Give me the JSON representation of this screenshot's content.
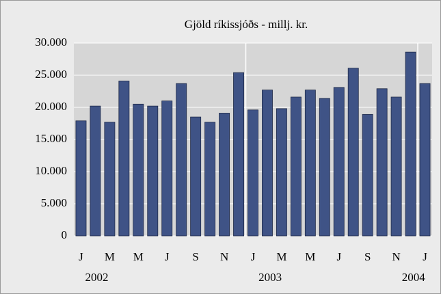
{
  "chart_data": {
    "type": "bar",
    "title": "Gjöld ríkissjóðs - millj. kr.",
    "categories": [
      "J",
      null,
      "M",
      null,
      "M",
      null,
      "J",
      null,
      "S",
      null,
      "N",
      null,
      "J",
      null,
      "M",
      null,
      "M",
      null,
      "J",
      null,
      "S",
      null,
      "N",
      null,
      "J"
    ],
    "years": [
      "2002",
      "2003",
      "2004"
    ],
    "values": [
      17900,
      20200,
      17700,
      24100,
      20500,
      20200,
      21000,
      23700,
      18500,
      17700,
      19100,
      25400,
      19600,
      22700,
      19800,
      21600,
      22700,
      21400,
      23100,
      26100,
      18900,
      22900,
      21600,
      28600,
      23700
    ],
    "color": "#3f5386",
    "ylim": [
      0,
      30000
    ],
    "yticks": [
      0,
      {
        "value": 5000,
        "label": "5.000"
      },
      {
        "value": 10000,
        "label": "10.000"
      },
      {
        "value": 15000,
        "label": "15.000"
      },
      {
        "value": 20000,
        "label": "20.000"
      },
      {
        "value": 25000,
        "label": "25.000"
      },
      {
        "value": 30000,
        "label": "30.000"
      }
    ],
    "grid": true
  }
}
